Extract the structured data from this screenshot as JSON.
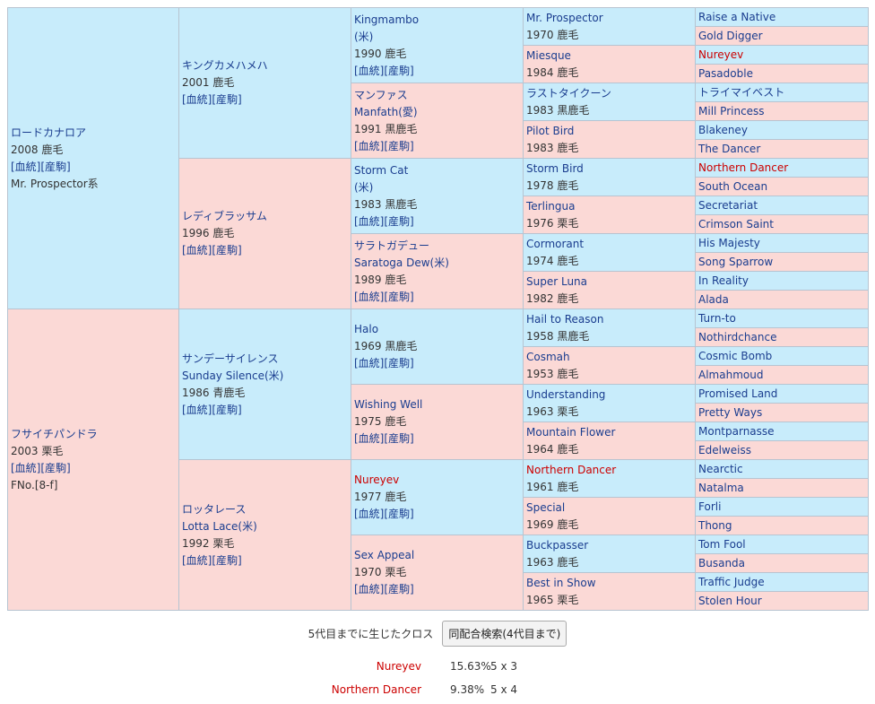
{
  "pedigree": {
    "g1": [
      {
        "name": "ロードカナロア",
        "year": "2008 鹿毛",
        "links": "[血統][産駒]",
        "note": "Mr. Prospector系"
      },
      {
        "name": "フサイチパンドラ",
        "year": "2003 栗毛",
        "links": "[血統][産駒]",
        "note": "FNo.[8-f]"
      }
    ],
    "g2": [
      {
        "name": "キングカメハメハ",
        "sub": "",
        "year": "2001 鹿毛",
        "links": "[血統][産駒]"
      },
      {
        "name": "レディブラッサム",
        "sub": "",
        "year": "1996 鹿毛",
        "links": "[血統][産駒]"
      },
      {
        "name": "サンデーサイレンス",
        "sub": "Sunday Silence(米)",
        "year": "1986 青鹿毛",
        "links": "[血統][産駒]"
      },
      {
        "name": "ロッタレース",
        "sub": "Lotta Lace(米)",
        "year": "1992 栗毛",
        "links": "[血統][産駒]"
      }
    ],
    "g3": [
      {
        "name": "Kingmambo",
        "sub": "(米)",
        "year": "1990 鹿毛",
        "links": "[血統][産駒]"
      },
      {
        "name": "マンファス",
        "sub": "Manfath(愛)",
        "year": "1991 黒鹿毛",
        "links": "[血統][産駒]"
      },
      {
        "name": "Storm Cat",
        "sub": "(米)",
        "year": "1983 黒鹿毛",
        "links": "[血統][産駒]"
      },
      {
        "name": "サラトガデュー",
        "sub": "Saratoga Dew(米)",
        "year": "1989 鹿毛",
        "links": "[血統][産駒]"
      },
      {
        "name": "Halo",
        "sub": "",
        "year": "1969 黒鹿毛",
        "links": "[血統][産駒]"
      },
      {
        "name": "Wishing Well",
        "sub": "",
        "year": "1975 鹿毛",
        "links": "[血統][産駒]"
      },
      {
        "name": "Nureyev",
        "sub": "",
        "year": "1977 鹿毛",
        "links": "[血統][産駒]"
      },
      {
        "name": "Sex Appeal",
        "sub": "",
        "year": "1970 栗毛",
        "links": "[血統][産駒]"
      }
    ],
    "g4": [
      {
        "name": "Mr. Prospector",
        "year": "1970 鹿毛"
      },
      {
        "name": "Miesque",
        "year": "1984 鹿毛"
      },
      {
        "name": "ラストタイクーン",
        "year": "1983 黒鹿毛"
      },
      {
        "name": "Pilot Bird",
        "year": "1983 鹿毛"
      },
      {
        "name": "Storm Bird",
        "year": "1978 鹿毛"
      },
      {
        "name": "Terlingua",
        "year": "1976 栗毛"
      },
      {
        "name": "Cormorant",
        "year": "1974 鹿毛"
      },
      {
        "name": "Super Luna",
        "year": "1982 鹿毛"
      },
      {
        "name": "Hail to Reason",
        "year": "1958 黒鹿毛"
      },
      {
        "name": "Cosmah",
        "year": "1953 鹿毛"
      },
      {
        "name": "Understanding",
        "year": "1963 栗毛"
      },
      {
        "name": "Mountain Flower",
        "year": "1964 鹿毛"
      },
      {
        "name": "Northern Dancer",
        "year": "1961 鹿毛"
      },
      {
        "name": "Special",
        "year": "1969 鹿毛"
      },
      {
        "name": "Buckpasser",
        "year": "1963 鹿毛"
      },
      {
        "name": "Best in Show",
        "year": "1965 栗毛"
      }
    ],
    "g5": [
      "Raise a Native",
      "Gold Digger",
      "Nureyev",
      "Pasadoble",
      "トライマイベスト",
      "Mill Princess",
      "Blakeney",
      "The Dancer",
      "Northern Dancer",
      "South Ocean",
      "Secretariat",
      "Crimson Saint",
      "His Majesty",
      "Song Sparrow",
      "In Reality",
      "Alada",
      "Turn-to",
      "Nothirdchance",
      "Cosmic Bomb",
      "Almahmoud",
      "Promised Land",
      "Pretty Ways",
      "Montparnasse",
      "Edelweiss",
      "Nearctic",
      "Natalma",
      "Forli",
      "Thong",
      "Tom Fool",
      "Busanda",
      "Traffic Judge",
      "Stolen Hour"
    ]
  },
  "cross": {
    "label": "5代目までに生じたクロス",
    "button": "同配合検索(4代目まで)",
    "rows": [
      {
        "name": "Nureyev",
        "percent": "15.63%",
        "gen": "5 x 3"
      },
      {
        "name": "Northern Dancer",
        "percent": "9.38%",
        "gen": "5 x 4"
      }
    ]
  },
  "highlight": [
    "Nureyev",
    "Northern Dancer"
  ],
  "colors": {
    "male": "#c8ecfb",
    "female": "#fbd9d6",
    "link": "#1a3d8f",
    "highlight": "#cc0000"
  }
}
